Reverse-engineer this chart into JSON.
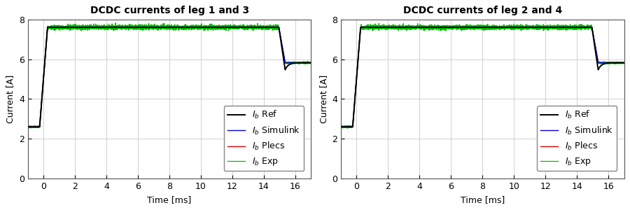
{
  "title1": "DCDC currents of leg 1 and 3",
  "title2": "DCDC currents of leg 2 and 4",
  "xlabel": "Time [ms]",
  "ylabel": "Current [A]",
  "xlim": [
    -1,
    17
  ],
  "ylim": [
    0,
    8
  ],
  "xticks": [
    0,
    2,
    4,
    6,
    8,
    10,
    12,
    14,
    16
  ],
  "yticks": [
    0,
    2,
    4,
    6,
    8
  ],
  "legend_labels": [
    "$I_b$ Ref",
    "$I_b$ Simulink",
    "$I_b$ Plecs",
    "$I_b$ Exp"
  ],
  "colors": [
    "#000000",
    "#0000dd",
    "#dd0000",
    "#00bb00"
  ],
  "linewidths": [
    1.4,
    1.0,
    1.0,
    0.9
  ],
  "initial_current": 2.6,
  "high_current": 7.6,
  "final_current": 5.82,
  "t_start": -1.0,
  "t_rise": 0.0,
  "t_fall": 15.0,
  "t_end": 17.0,
  "noise_amp_green_plateau": 0.055,
  "noise_amp_green_low": 0.025,
  "background_color": "#ffffff",
  "grid_color": "#d0d0d0",
  "title_fontsize": 10,
  "label_fontsize": 9,
  "tick_fontsize": 9,
  "legend_fontsize": 9
}
